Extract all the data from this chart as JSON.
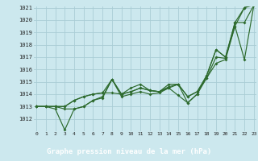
{
  "title": "Graphe pression niveau de la mer (hPa)",
  "bg_color": "#cce8ee",
  "grid_color": "#aacdd5",
  "line_color": "#2d6a2d",
  "label_bg": "#2d6a2d",
  "label_fg": "#ffffff",
  "x_min": 0,
  "x_max": 23,
  "y_min": 1011,
  "y_max": 1021,
  "series": [
    [
      1013.0,
      1013.0,
      1013.0,
      1012.8,
      1012.8,
      1013.0,
      1013.5,
      1013.8,
      1015.2,
      1014.0,
      1014.5,
      1014.8,
      1014.3,
      1014.2,
      1014.8,
      1014.8,
      1013.3,
      1014.0,
      1015.5,
      1017.6,
      1017.0,
      1019.5,
      1021.0,
      1021.3
    ],
    [
      1013.0,
      1013.0,
      1012.8,
      1011.1,
      1012.8,
      1013.0,
      1013.5,
      1013.7,
      1015.2,
      1013.8,
      1014.0,
      1014.2,
      1014.0,
      1014.1,
      1014.5,
      1013.9,
      1013.3,
      1014.0,
      1015.3,
      1016.5,
      1016.8,
      1019.5,
      1016.8,
      1021.2
    ],
    [
      1013.0,
      1013.0,
      1013.0,
      1013.0,
      1013.5,
      1013.8,
      1014.0,
      1014.1,
      1014.1,
      1014.0,
      1014.2,
      1014.5,
      1014.3,
      1014.2,
      1014.5,
      1014.8,
      1013.8,
      1014.2,
      1015.3,
      1017.0,
      1016.9,
      1019.8,
      1019.8,
      1021.2
    ],
    [
      1013.0,
      1013.0,
      1013.0,
      1013.0,
      1013.5,
      1013.8,
      1014.0,
      1014.1,
      1015.2,
      1014.0,
      1014.2,
      1014.5,
      1014.3,
      1014.2,
      1014.6,
      1014.8,
      1013.8,
      1014.2,
      1015.5,
      1017.6,
      1017.0,
      1019.8,
      1021.0,
      1021.2
    ]
  ]
}
